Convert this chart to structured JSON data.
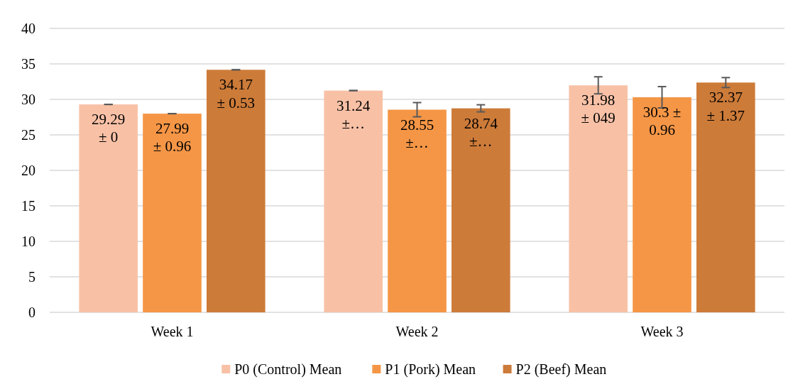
{
  "chart_data": {
    "type": "bar",
    "categories": [
      "Week 1",
      "Week 2",
      "Week 3"
    ],
    "series": [
      {
        "name": "P0 (Control) Mean",
        "color": "#f8c1a6",
        "values": [
          29.29,
          31.24,
          31.98
        ],
        "errors": [
          0,
          0,
          1.2
        ],
        "value_labels": [
          "29.29 ± 0",
          "31.24 ±…",
          "31.98 ± 049"
        ]
      },
      {
        "name": "P1 (Pork) Mean",
        "color": "#f59646",
        "values": [
          27.99,
          28.55,
          30.3
        ],
        "errors": [
          0,
          1,
          1.5
        ],
        "value_labels": [
          "27.99 ± 0.96",
          "28.55 ±…",
          "30.3 ± 0.96"
        ]
      },
      {
        "name": "P2 (Beef) Mean",
        "color": "#cd7b39",
        "values": [
          34.17,
          28.74,
          32.37
        ],
        "errors": [
          0,
          0.5,
          0.7
        ],
        "value_labels": [
          "34.17 ± 0.53",
          "28.74 ±…",
          "32.37 ± 1.37"
        ]
      }
    ],
    "ylim": [
      0,
      40
    ],
    "yticks": [
      0,
      5,
      10,
      15,
      20,
      25,
      30,
      35,
      40
    ],
    "grid": "y",
    "legend": "bottom"
  }
}
